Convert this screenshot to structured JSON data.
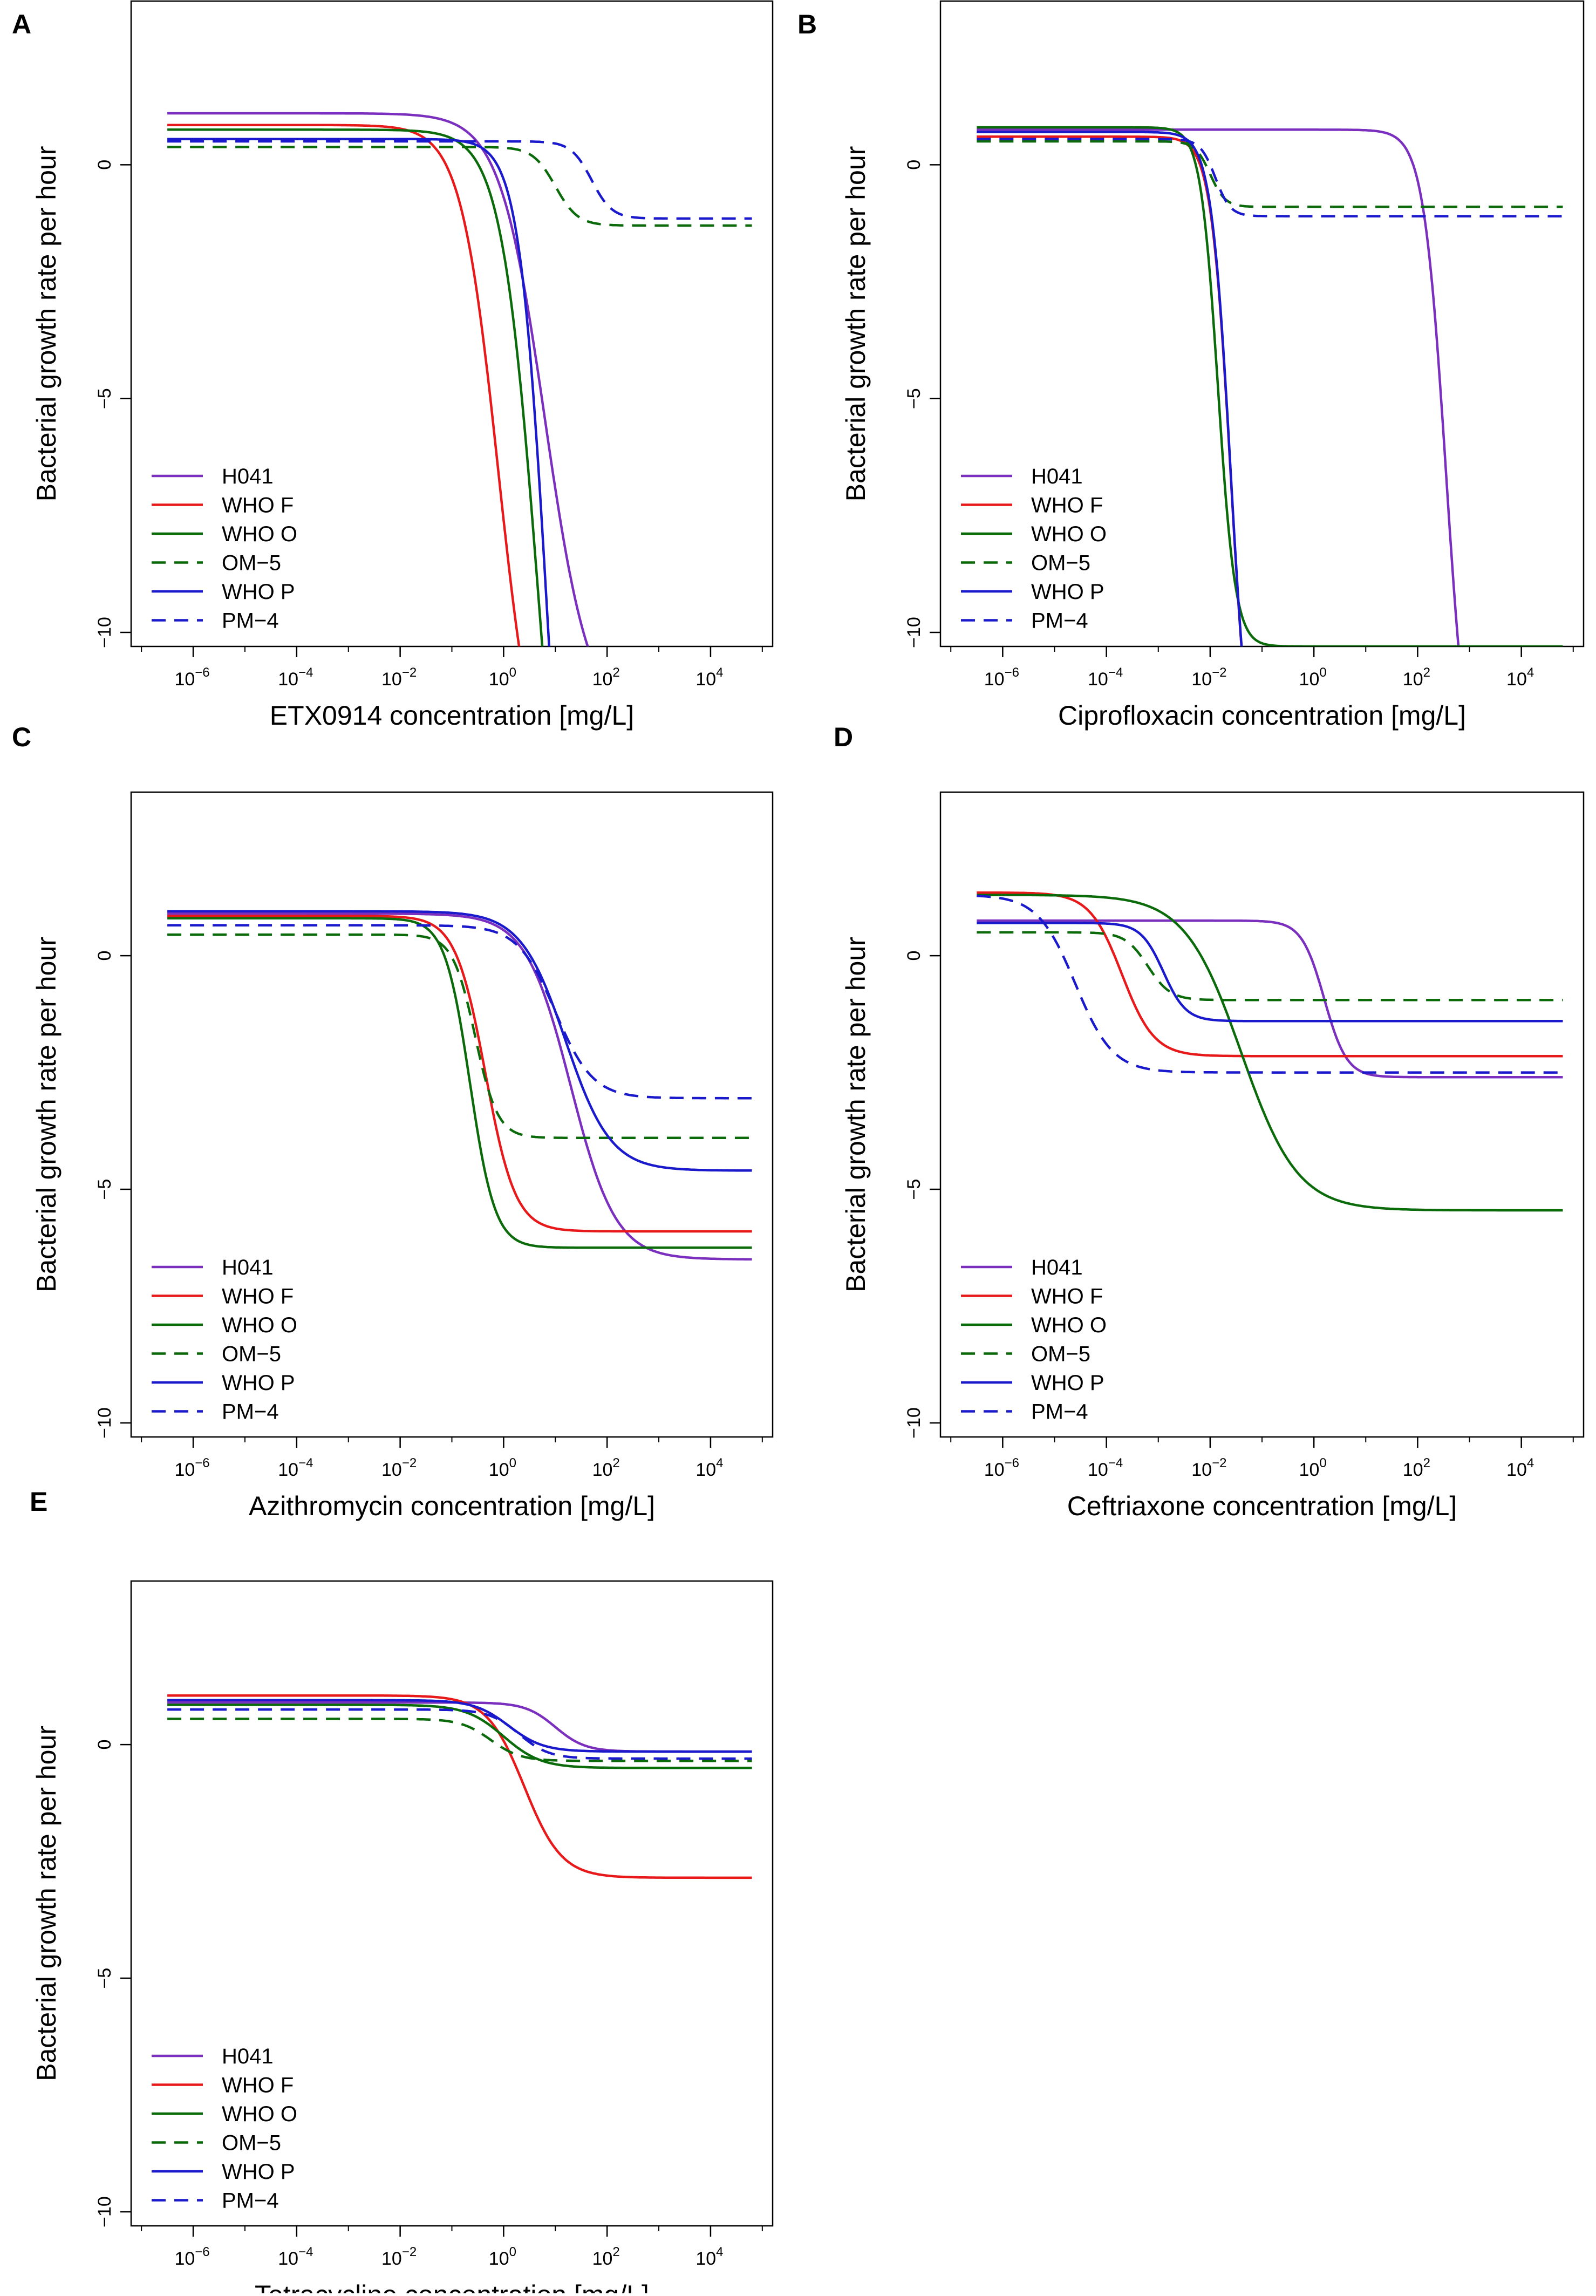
{
  "figure": {
    "legend_labels": [
      "H041",
      "WHO F",
      "WHO O",
      "OM−5",
      "WHO P",
      "PM−4"
    ],
    "series_styles": [
      {
        "name": "H041",
        "color": "#7B2FBE",
        "dashed": false
      },
      {
        "name": "WHO F",
        "color": "#E8191A",
        "dashed": false
      },
      {
        "name": "WHO O",
        "color": "#0B6B0B",
        "dashed": false
      },
      {
        "name": "OM−5",
        "color": "#0B6B0B",
        "dashed": true
      },
      {
        "name": "WHO P",
        "color": "#1A1ACC",
        "dashed": false
      },
      {
        "name": "PM−4",
        "color": "#1A1ACC",
        "dashed": true
      }
    ]
  },
  "chart_data": [
    {
      "panel": "A",
      "type": "line",
      "xlabel": "ETX0914 concentration [mg/L]",
      "ylabel": "Bacterial growth rate per hour",
      "xscale": "log10",
      "xlim_log10": [
        -7.2,
        5.2
      ],
      "ylim": [
        -10.3,
        3.5
      ],
      "yticks": [
        0,
        -5,
        -10
      ],
      "xticks_exp": [
        "−6",
        "−4",
        "−2",
        "0",
        "2",
        "4"
      ],
      "legend_position": "bottom-left",
      "series": [
        {
          "name": "H041",
          "emax": 1.1,
          "emin": -12,
          "ec50_log10": 0.8,
          "hill": 1.0
        },
        {
          "name": "WHO F",
          "emax": 0.85,
          "emin": -14,
          "ec50_log10": -0.1,
          "hill": 1.2
        },
        {
          "name": "WHO O",
          "emax": 0.75,
          "emin": -20,
          "ec50_log10": 0.7,
          "hill": 1.2
        },
        {
          "name": "OM−5",
          "emax": 0.38,
          "emin": -1.3,
          "ec50_log10": 1.0,
          "hill": 2.0
        },
        {
          "name": "WHO P",
          "emax": 0.55,
          "emin": -20,
          "ec50_log10": 0.85,
          "hill": 1.6
        },
        {
          "name": "PM−4",
          "emax": 0.5,
          "emin": -1.15,
          "ec50_log10": 1.7,
          "hill": 2.2
        }
      ]
    },
    {
      "panel": "B",
      "type": "line",
      "xlabel": "Ciprofloxacin concentration [mg/L]",
      "ylabel": "Bacterial growth rate per hour",
      "xscale": "log10",
      "xlim_log10": [
        -7.2,
        5.2
      ],
      "ylim": [
        -10.3,
        3.5
      ],
      "yticks": [
        0,
        -5,
        -10
      ],
      "xticks_exp": [
        "−6",
        "−4",
        "−2",
        "0",
        "2",
        "4"
      ],
      "legend_position": "bottom-left",
      "series": [
        {
          "name": "H041",
          "emax": 0.75,
          "emin": -14,
          "ec50_log10": 2.55,
          "hill": 2.0
        },
        {
          "name": "WHO F",
          "emax": 0.6,
          "emin": -14,
          "ec50_log10": -1.6,
          "hill": 2.3
        },
        {
          "name": "WHO O",
          "emax": 0.8,
          "emin": -10.3,
          "ec50_log10": -1.85,
          "hill": 2.6
        },
        {
          "name": "OM−5",
          "emax": 0.5,
          "emin": -0.9,
          "ec50_log10": -2.0,
          "hill": 3.0
        },
        {
          "name": "WHO P",
          "emax": 0.7,
          "emin": -14,
          "ec50_log10": -1.6,
          "hill": 2.3
        },
        {
          "name": "PM−4",
          "emax": 0.55,
          "emin": -1.1,
          "ec50_log10": -1.9,
          "hill": 3.0
        }
      ]
    },
    {
      "panel": "C",
      "type": "line",
      "xlabel": "Azithromycin concentration [mg/L]",
      "ylabel": "Bacterial growth rate per hour",
      "xscale": "log10",
      "xlim_log10": [
        -7.2,
        5.2
      ],
      "ylim": [
        -10.3,
        3.5
      ],
      "yticks": [
        0,
        -5,
        -10
      ],
      "xticks_exp": [
        "−6",
        "−4",
        "−2",
        "0",
        "2",
        "4"
      ],
      "legend_position": "bottom-left",
      "series": [
        {
          "name": "H041",
          "emax": 0.9,
          "emin": -6.5,
          "ec50_log10": 1.3,
          "hill": 1.0
        },
        {
          "name": "WHO F",
          "emax": 0.85,
          "emin": -5.9,
          "ec50_log10": -0.35,
          "hill": 1.5
        },
        {
          "name": "WHO O",
          "emax": 0.8,
          "emin": -6.25,
          "ec50_log10": -0.65,
          "hill": 1.8
        },
        {
          "name": "OM−5",
          "emax": 0.45,
          "emin": -3.9,
          "ec50_log10": -0.55,
          "hill": 2.0
        },
        {
          "name": "WHO P",
          "emax": 0.95,
          "emin": -4.6,
          "ec50_log10": 1.2,
          "hill": 1.0
        },
        {
          "name": "PM−4",
          "emax": 0.65,
          "emin": -3.05,
          "ec50_log10": 1.0,
          "hill": 1.2
        }
      ]
    },
    {
      "panel": "D",
      "type": "line",
      "xlabel": "Ceftriaxone concentration [mg/L]",
      "ylabel": "Bacterial growth rate per hour",
      "xscale": "log10",
      "xlim_log10": [
        -7.2,
        5.2
      ],
      "ylim": [
        -10.3,
        3.5
      ],
      "yticks": [
        0,
        -5,
        -10
      ],
      "xticks_exp": [
        "−6",
        "−4",
        "−2",
        "0",
        "2",
        "4"
      ],
      "legend_position": "bottom-left",
      "series": [
        {
          "name": "H041",
          "emax": 0.75,
          "emin": -2.6,
          "ec50_log10": 0.2,
          "hill": 2.0
        },
        {
          "name": "WHO F",
          "emax": 1.35,
          "emin": -2.15,
          "ec50_log10": -3.7,
          "hill": 1.4
        },
        {
          "name": "WHO O",
          "emax": 1.3,
          "emin": -5.45,
          "ec50_log10": -1.4,
          "hill": 0.8
        },
        {
          "name": "OM−5",
          "emax": 0.5,
          "emin": -0.95,
          "ec50_log10": -3.2,
          "hill": 2.0
        },
        {
          "name": "WHO P",
          "emax": 0.7,
          "emin": -1.4,
          "ec50_log10": -2.9,
          "hill": 2.0
        },
        {
          "name": "PM−4",
          "emax": 1.3,
          "emin": -2.5,
          "ec50_log10": -4.6,
          "hill": 1.2
        }
      ]
    },
    {
      "panel": "E",
      "type": "line",
      "xlabel": "Tetracycline concentration [mg/L]",
      "ylabel": "Bacterial growth rate per hour",
      "xscale": "log10",
      "xlim_log10": [
        -7.2,
        5.2
      ],
      "ylim": [
        -10.3,
        3.5
      ],
      "yticks": [
        0,
        -5,
        -10
      ],
      "xticks_exp": [
        "−6",
        "−4",
        "−2",
        "0",
        "2",
        "4"
      ],
      "legend_position": "bottom-left",
      "series": [
        {
          "name": "H041",
          "emax": 0.9,
          "emin": -0.15,
          "ec50_log10": 1.0,
          "hill": 1.5
        },
        {
          "name": "WHO F",
          "emax": 1.05,
          "emin": -2.85,
          "ec50_log10": 0.4,
          "hill": 1.2
        },
        {
          "name": "WHO O",
          "emax": 0.85,
          "emin": -0.5,
          "ec50_log10": 0.0,
          "hill": 1.2
        },
        {
          "name": "OM−5",
          "emax": 0.55,
          "emin": -0.35,
          "ec50_log10": -0.25,
          "hill": 1.5
        },
        {
          "name": "WHO P",
          "emax": 0.95,
          "emin": -0.15,
          "ec50_log10": 0.1,
          "hill": 1.3
        },
        {
          "name": "PM−4",
          "emax": 0.75,
          "emin": -0.3,
          "ec50_log10": 0.3,
          "hill": 1.5
        }
      ]
    }
  ]
}
